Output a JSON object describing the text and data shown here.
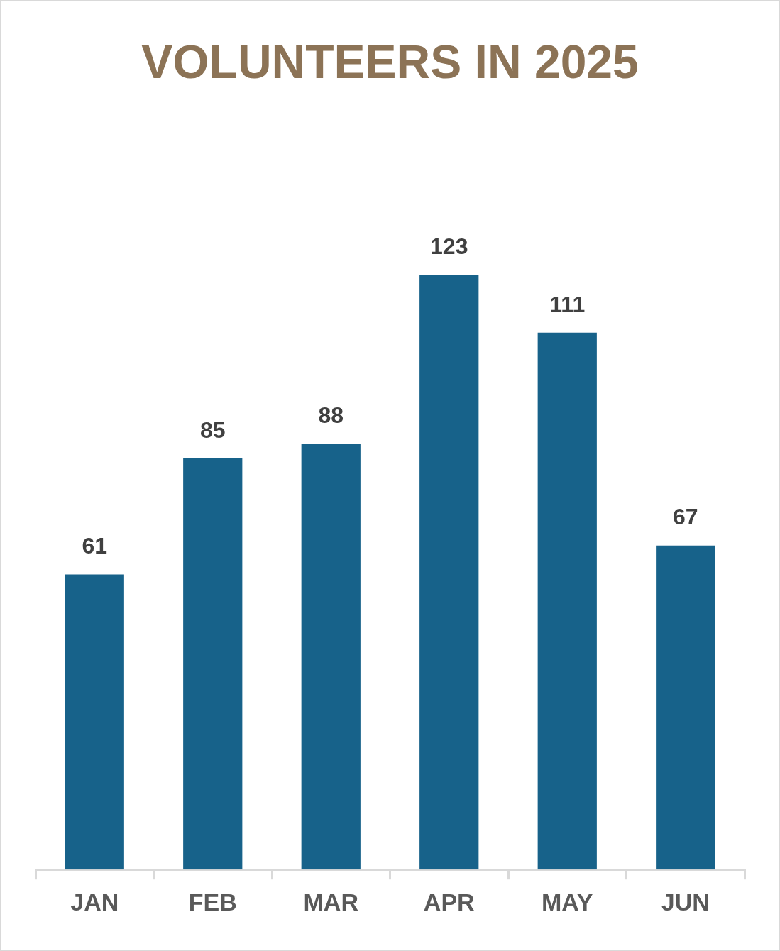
{
  "chart_data": {
    "type": "bar",
    "title": "VOLUNTEERS IN 2025",
    "categories": [
      "JAN",
      "FEB",
      "MAR",
      "APR",
      "MAY",
      "JUN"
    ],
    "values": [
      61,
      85,
      88,
      123,
      111,
      67
    ],
    "color": "#17628a",
    "data_labels": true,
    "grid": false,
    "legend": false
  }
}
